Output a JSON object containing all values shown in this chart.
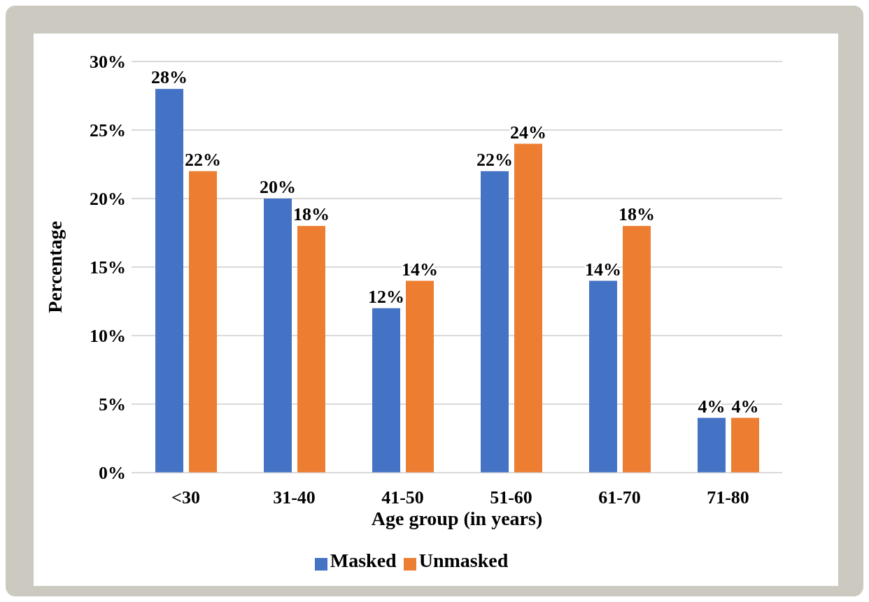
{
  "chart_data": {
    "type": "bar",
    "xlabel": "Age group (in years)",
    "ylabel": "Percentage",
    "categories": [
      "<30",
      "31-40",
      "41-50",
      "51-60",
      "61-70",
      "71-80"
    ],
    "series": [
      {
        "name": "Masked",
        "color": "#4472c4",
        "values": [
          28,
          20,
          12,
          22,
          14,
          4
        ],
        "value_labels": [
          "28%",
          "20%",
          "12%",
          "22%",
          "14%",
          "4%"
        ]
      },
      {
        "name": "Unmasked",
        "color": "#ed7d31",
        "values": [
          22,
          18,
          14,
          24,
          18,
          4
        ],
        "value_labels": [
          "22%",
          "18%",
          "14%",
          "24%",
          "18%",
          "4%"
        ]
      }
    ],
    "ylim": [
      0,
      30
    ],
    "yticks": [
      {
        "value": 0,
        "label": "0%"
      },
      {
        "value": 5,
        "label": "5%"
      },
      {
        "value": 10,
        "label": "10%"
      },
      {
        "value": 15,
        "label": "15%"
      },
      {
        "value": 20,
        "label": "20%"
      },
      {
        "value": 25,
        "label": "25%"
      },
      {
        "value": 30,
        "label": "30%"
      }
    ],
    "grid": "y",
    "legend": "bottom"
  }
}
